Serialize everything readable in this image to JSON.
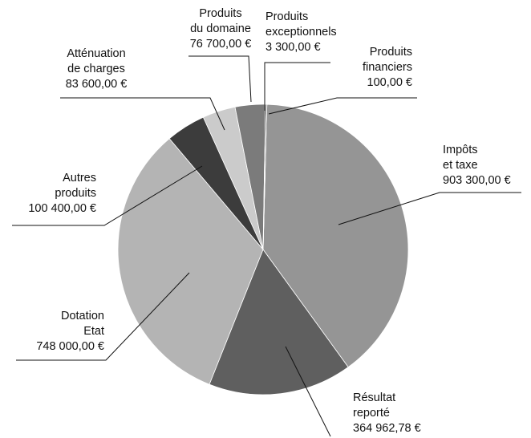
{
  "chart_data": {
    "type": "pie",
    "categories": [
      "Impôts\net taxe",
      "Résultat\nreporté",
      "Dotation\nEtat",
      "Autres\nproduits",
      "Atténuation\nde charges",
      "Produits\ndu domaine",
      "Produits\nexceptionnels",
      "Produits\nfinanciers"
    ],
    "values": [
      903300,
      364962.78,
      748000,
      100400,
      83600,
      76700,
      3300,
      100
    ],
    "value_labels": [
      "903 300,00 €",
      "364 962,78 €",
      "748 000,00 €",
      "100 400,00 €",
      "83 600,00 €",
      "76 700,00 €",
      "3 300,00 €",
      "100,00 €"
    ],
    "colors": [
      "#959595",
      "#5f5f5f",
      "#b4b4b4",
      "#3c3c3c",
      "#cbcbcb",
      "#7b7b7b",
      "#2a2a2a",
      "#111111"
    ]
  }
}
